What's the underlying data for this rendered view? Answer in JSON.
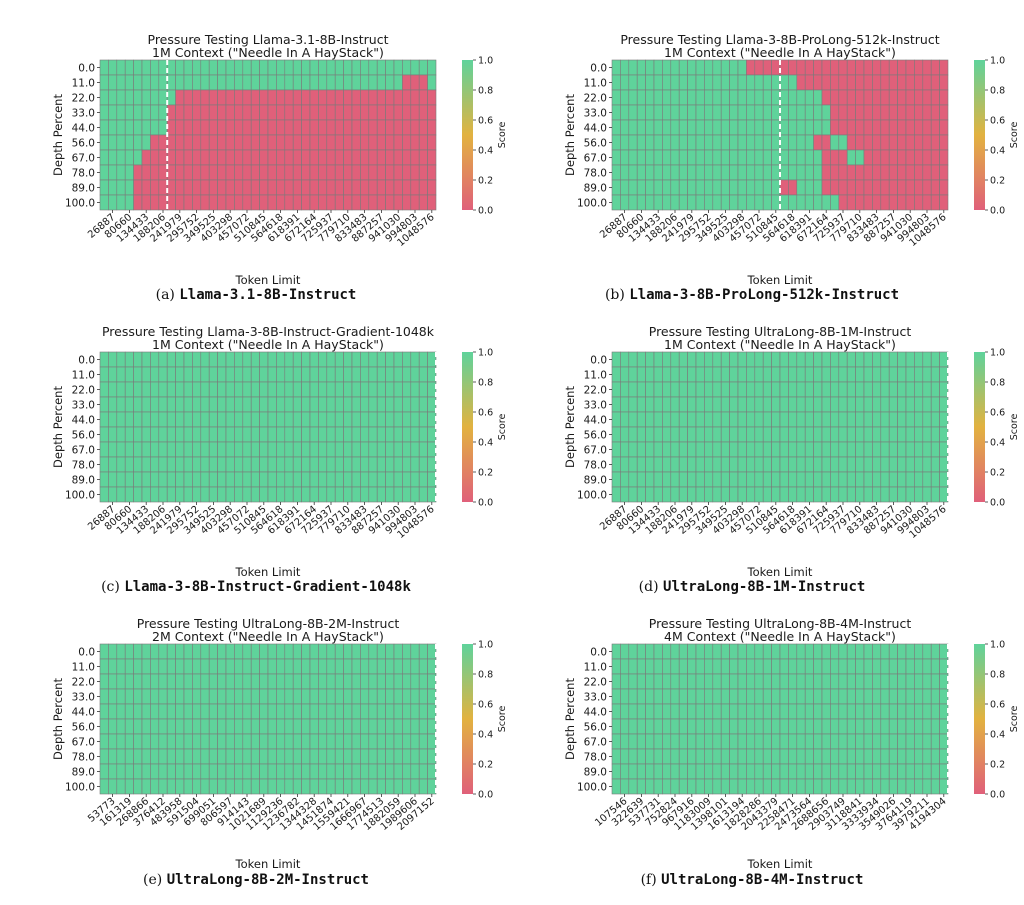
{
  "colors": {
    "pass": "#5fd39b",
    "fail": "#e0607a",
    "grid": "#7a7a7a",
    "line": "#ffffff"
  },
  "common": {
    "ylabel": "Depth Percent",
    "xlabel": "Token Limit",
    "colorbar_label": "Score",
    "colorbar_ticks": [
      "0.0",
      "0.2",
      "0.4",
      "0.6",
      "0.8",
      "1.0"
    ],
    "depths": [
      "0.0",
      "11.0",
      "22.0",
      "33.0",
      "44.0",
      "56.0",
      "67.0",
      "78.0",
      "89.0",
      "100.0"
    ],
    "xticks_1m": [
      "26887",
      "80660",
      "134433",
      "188206",
      "241979",
      "295752",
      "349525",
      "403298",
      "457072",
      "510845",
      "564618",
      "618391",
      "672164",
      "725937",
      "779710",
      "833483",
      "887257",
      "941030",
      "994803",
      "1048576"
    ],
    "xticks_2m": [
      "53773",
      "161319",
      "268866",
      "376412",
      "483958",
      "591504",
      "699051",
      "806597",
      "914143",
      "1021689",
      "1129236",
      "1236782",
      "1344328",
      "1451874",
      "1559421",
      "1666967",
      "1774513",
      "1882059",
      "1989606",
      "2097152"
    ],
    "xticks_4m": [
      "107546",
      "322639",
      "537731",
      "752824",
      "967916",
      "1183009",
      "1398101",
      "1613194",
      "1828286",
      "2043379",
      "2258471",
      "2473564",
      "2688656",
      "2903749",
      "3118841",
      "3333934",
      "3549026",
      "3764119",
      "3979211",
      "4194304"
    ]
  },
  "captions": [
    {
      "label": "(a)",
      "model": "Llama-3.1-8B-Instruct"
    },
    {
      "label": "(b)",
      "model": "Llama-3-8B-ProLong-512k-Instruct"
    },
    {
      "label": "(c)",
      "model": "Llama-3-8B-Instruct-Gradient-1048k"
    },
    {
      "label": "(d)",
      "model": "UltraLong-8B-1M-Instruct"
    },
    {
      "label": "(e)",
      "model": "UltraLong-8B-2M-Instruct"
    },
    {
      "label": "(f)",
      "model": "UltraLong-8B-4M-Instruct"
    }
  ],
  "chart_data": [
    {
      "type": "heatmap",
      "title": "Pressure Testing Llama-3.1-8B-Instruct",
      "subtitle": "1M Context (\"Needle In A HayStack\")",
      "xlabel": "Token Limit",
      "ylabel": "Depth Percent",
      "tick_set": "1m",
      "ncols": 40,
      "dashed_after_col": 7,
      "color_range": [
        0,
        1
      ],
      "fail_start_col": [
        40,
        36,
        9,
        8,
        8,
        6,
        5,
        4,
        4,
        4
      ],
      "extra_pass": [
        [
          1,
          16
        ],
        [
          1,
          39
        ]
      ]
    },
    {
      "type": "heatmap",
      "title": "Pressure Testing Llama-3-8B-ProLong-512k-Instruct",
      "subtitle": "1M Context (\"Needle In A HayStack\")",
      "xlabel": "Token Limit",
      "ylabel": "Depth Percent",
      "tick_set": "1m",
      "ncols": 40,
      "dashed_after_col": 19,
      "color_range": [
        0,
        1
      ],
      "fail_start_col": [
        16,
        22,
        25,
        26,
        26,
        25,
        26,
        25,
        21,
        27
      ],
      "extra_pass": [
        [
          6,
          28
        ],
        [
          6,
          29
        ],
        [
          5,
          26
        ],
        [
          5,
          27
        ],
        [
          8,
          22
        ],
        [
          8,
          23
        ],
        [
          8,
          24
        ]
      ],
      "extra_fail": [
        [
          5,
          24
        ],
        [
          6,
          25
        ],
        [
          6,
          27
        ],
        [
          8,
          20
        ]
      ]
    },
    {
      "type": "heatmap",
      "title": "Pressure Testing Llama-3-8B-Instruct-Gradient-1048k",
      "subtitle": "1M Context (\"Needle In A HayStack\")",
      "xlabel": "Token Limit",
      "ylabel": "Depth Percent",
      "tick_set": "1m",
      "ncols": 40,
      "dashed_after_col": 39,
      "color_range": [
        0,
        1
      ],
      "fail_start_col": [
        40,
        40,
        40,
        40,
        40,
        40,
        40,
        40,
        40,
        40
      ]
    },
    {
      "type": "heatmap",
      "title": "Pressure Testing UltraLong-8B-1M-Instruct",
      "subtitle": "1M Context (\"Needle In A HayStack\")",
      "xlabel": "Token Limit",
      "ylabel": "Depth Percent",
      "tick_set": "1m",
      "ncols": 40,
      "dashed_after_col": 39,
      "color_range": [
        0,
        1
      ],
      "fail_start_col": [
        40,
        40,
        40,
        40,
        40,
        40,
        40,
        40,
        40,
        40
      ]
    },
    {
      "type": "heatmap",
      "title": "Pressure Testing UltraLong-8B-2M-Instruct",
      "subtitle": "2M Context (\"Needle In A HayStack\")",
      "xlabel": "Token Limit",
      "ylabel": "Depth Percent",
      "tick_set": "2m",
      "ncols": 40,
      "dashed_after_col": 39,
      "color_range": [
        0,
        1
      ],
      "fail_start_col": [
        40,
        40,
        40,
        40,
        40,
        40,
        40,
        40,
        40,
        40
      ]
    },
    {
      "type": "heatmap",
      "title": "Pressure Testing UltraLong-8B-4M-Instruct",
      "subtitle": "4M Context (\"Needle In A HayStack\")",
      "xlabel": "Token Limit",
      "ylabel": "Depth Percent",
      "tick_set": "4m",
      "ncols": 40,
      "dashed_after_col": 39,
      "color_range": [
        0,
        1
      ],
      "fail_start_col": [
        40,
        40,
        40,
        40,
        40,
        40,
        40,
        40,
        40,
        40
      ]
    }
  ]
}
